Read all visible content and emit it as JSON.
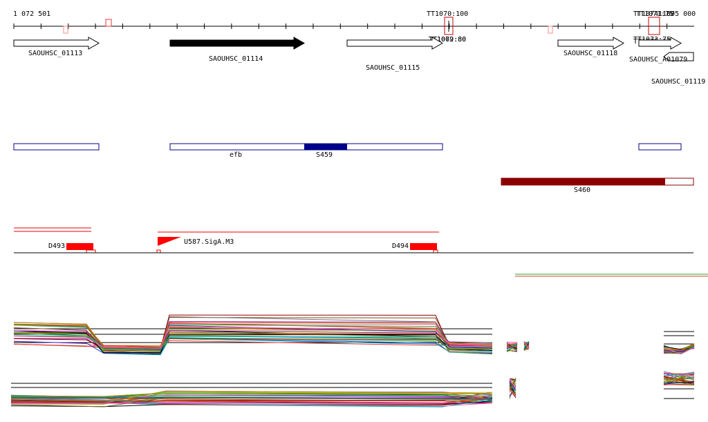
{
  "ruler": {
    "start": "1 072 501",
    "end": "1 075 000"
  },
  "terminators": [
    "TT1070:100",
    "TT1074:100",
    "TT1071:75",
    "TT1069:80",
    "TT1072:80",
    "TT1073:75",
    "TT1075:100"
  ],
  "genes": [
    "SAOUHSC_01113",
    "SAOUHSC_01114",
    "SAOUHSC_01115",
    "SAOUHSC_01118",
    "SAOUHSC_A01079",
    "SAOUHSC_01119"
  ],
  "regions": [
    "efb",
    "S459",
    "S460"
  ],
  "segments": [
    "D493",
    "U587.SigA.M3",
    "D494"
  ]
}
